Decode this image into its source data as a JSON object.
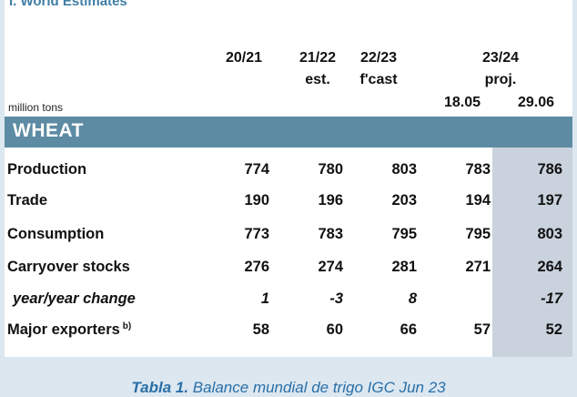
{
  "title": "I. World Estimates",
  "columns": {
    "c1": "20/21",
    "c2_line1": "21/22",
    "c2_line2": "est.",
    "c3_line1": "22/23",
    "c3_line2": "f'cast",
    "c45_line1": "23/24",
    "c45_line2": "proj.",
    "c4_date": "18.05",
    "c5_date": "29.06"
  },
  "unit_label": "million tons",
  "section": "WHEAT",
  "rows": [
    {
      "label": "Production",
      "italic": false,
      "values": [
        "774",
        "780",
        "803",
        "783",
        "786"
      ]
    },
    {
      "label": "Trade",
      "italic": false,
      "values": [
        "190",
        "196",
        "203",
        "194",
        "197"
      ]
    },
    {
      "label": "Consumption",
      "italic": false,
      "values": [
        "773",
        "783",
        "795",
        "795",
        "803"
      ]
    },
    {
      "label": "Carryover stocks",
      "italic": false,
      "values": [
        "276",
        "274",
        "281",
        "271",
        "264"
      ]
    },
    {
      "label": "year/year change",
      "italic": true,
      "values": [
        "1",
        "-3",
        "8",
        "",
        "-17"
      ]
    },
    {
      "label": "Major exporters",
      "label_sup": "b)",
      "italic": false,
      "values": [
        "58",
        "60",
        "66",
        "57",
        "52"
      ]
    }
  ],
  "caption": {
    "prefix": "Tabla 1.",
    "text": "Balance mundial de trigo IGC Jun 23"
  },
  "colors": {
    "band": "#5d8ba3",
    "shade": "#c9d2dd",
    "title": "#3f7ea6",
    "caption": "#2a6fa8"
  }
}
